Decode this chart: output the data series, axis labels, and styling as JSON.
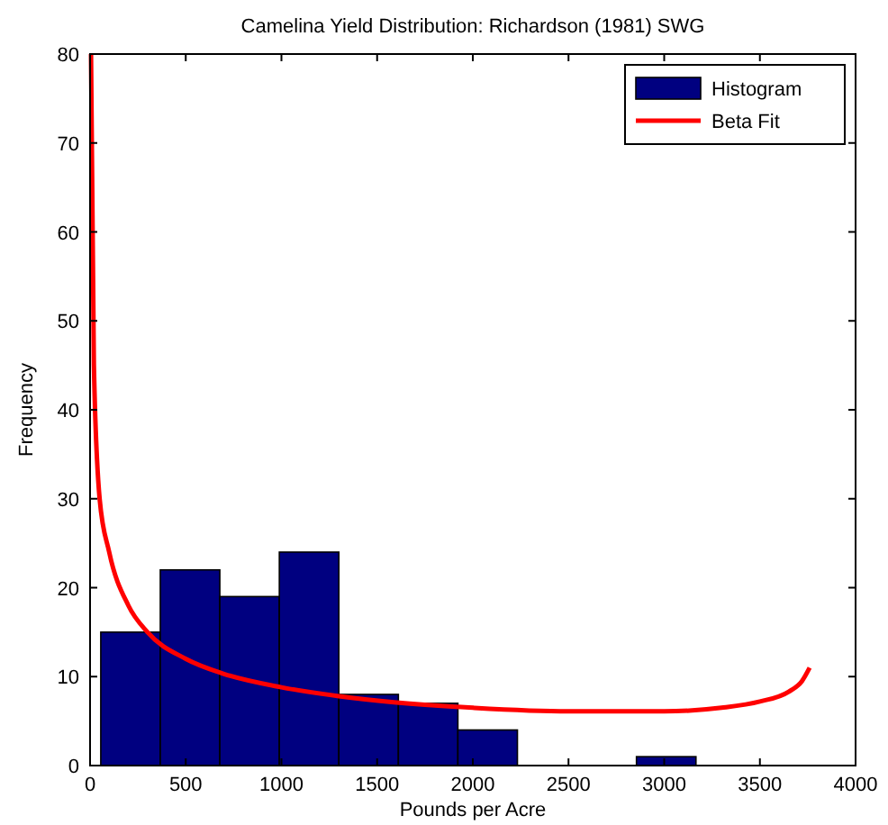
{
  "chart_data": {
    "type": "histogram",
    "title": "Camelina Yield Distribution: Richardson (1981) SWG",
    "xlabel": "Pounds per Acre",
    "ylabel": "Frequency",
    "series": [
      {
        "name": "Histogram",
        "color": "#000080",
        "bins": [
          56,
          367,
          678,
          989,
          1300,
          1611,
          1922,
          2233,
          2544,
          2855,
          3166
        ],
        "values": [
          15,
          22,
          19,
          24,
          8,
          7,
          4,
          0,
          0,
          1
        ]
      },
      {
        "name": "Beta Fit",
        "type": "line",
        "color": "#ff0000",
        "x": [
          5,
          20,
          50,
          100,
          200,
          300,
          500,
          700,
          1000,
          1300,
          1600,
          2000,
          2500,
          3000,
          3300,
          3500,
          3650,
          3720,
          3760
        ],
        "values": [
          80,
          45,
          30,
          24,
          18,
          15,
          12,
          10.3,
          8.8,
          7.8,
          7.1,
          6.5,
          6.1,
          6.1,
          6.5,
          7.2,
          8.3,
          9.5,
          11
        ]
      }
    ],
    "xlim": [
      0,
      4000
    ],
    "xticks": [
      0,
      500,
      1000,
      1500,
      2000,
      2500,
      3000,
      3500,
      4000
    ],
    "ylim": [
      0,
      80
    ],
    "yticks": [
      0,
      10,
      20,
      30,
      40,
      50,
      60,
      70,
      80
    ],
    "legend": "top right",
    "grid": false
  }
}
